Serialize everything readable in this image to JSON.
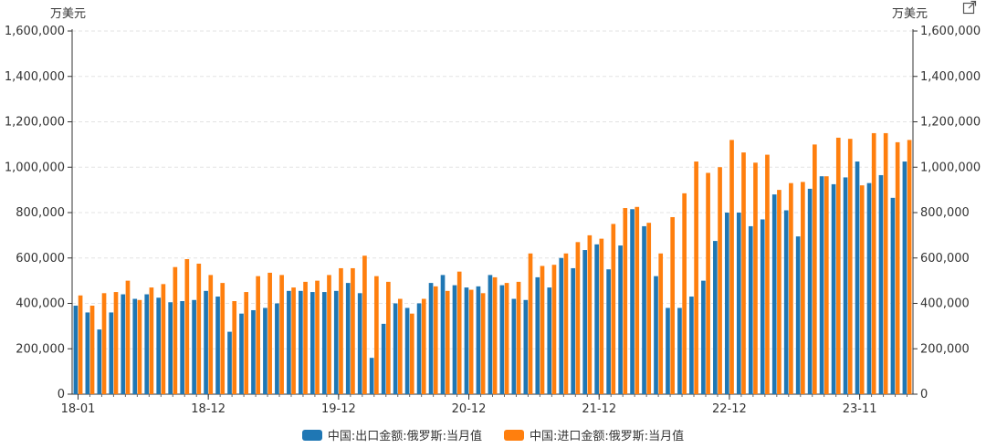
{
  "chart_data": {
    "type": "bar",
    "unit": "万美元",
    "x_tick_labels": [
      "18-01",
      "18-12",
      "19-12",
      "20-12",
      "21-12",
      "22-12",
      "23-11"
    ],
    "ylim": [
      0,
      1600000
    ],
    "y_ticks": [
      "0",
      "200,000",
      "400,000",
      "600,000",
      "800,000",
      "1,000,000",
      "1,200,000",
      "1,400,000",
      "1,600,000"
    ],
    "grid": true,
    "legend_position": "bottom",
    "series": [
      {
        "name": "中国:出口金额:俄罗斯:当月值",
        "color": "#1f77b4",
        "values": [
          390000,
          360000,
          285000,
          360000,
          440000,
          420000,
          440000,
          425000,
          405000,
          410000,
          415000,
          455000,
          430000,
          275000,
          355000,
          370000,
          380000,
          400000,
          455000,
          455000,
          450000,
          450000,
          455000,
          490000,
          445000,
          160000,
          310000,
          400000,
          380000,
          400000,
          490000,
          525000,
          480000,
          470000,
          475000,
          525000,
          480000,
          420000,
          415000,
          515000,
          470000,
          600000,
          555000,
          635000,
          660000,
          550000,
          655000,
          815000,
          740000,
          520000,
          380000,
          380000,
          430000,
          500000,
          675000,
          800000,
          800000,
          740000,
          770000,
          880000,
          810000,
          695000,
          905000,
          960000,
          925000,
          955000,
          1025000,
          930000,
          965000,
          865000,
          1025000
        ]
      },
      {
        "name": "中国:进口金额:俄罗斯:当月值",
        "color": "#ff7f0e",
        "values": [
          435000,
          390000,
          445000,
          450000,
          500000,
          415000,
          470000,
          485000,
          560000,
          595000,
          575000,
          525000,
          490000,
          410000,
          450000,
          520000,
          535000,
          525000,
          470000,
          495000,
          500000,
          525000,
          555000,
          555000,
          610000,
          520000,
          495000,
          420000,
          355000,
          420000,
          475000,
          455000,
          540000,
          460000,
          445000,
          515000,
          490000,
          495000,
          620000,
          565000,
          570000,
          620000,
          670000,
          700000,
          685000,
          750000,
          820000,
          825000,
          755000,
          620000,
          780000,
          885000,
          1025000,
          975000,
          1000000,
          1120000,
          1065000,
          1020000,
          1055000,
          900000,
          930000,
          935000,
          1100000,
          960000,
          1130000,
          1125000,
          920000,
          1150000,
          1150000,
          1110000,
          1120000
        ]
      }
    ]
  },
  "legend": {
    "series1_label": "中国:出口金额:俄罗斯:当月值",
    "series2_label": "中国:进口金额:俄罗斯:当月值"
  }
}
